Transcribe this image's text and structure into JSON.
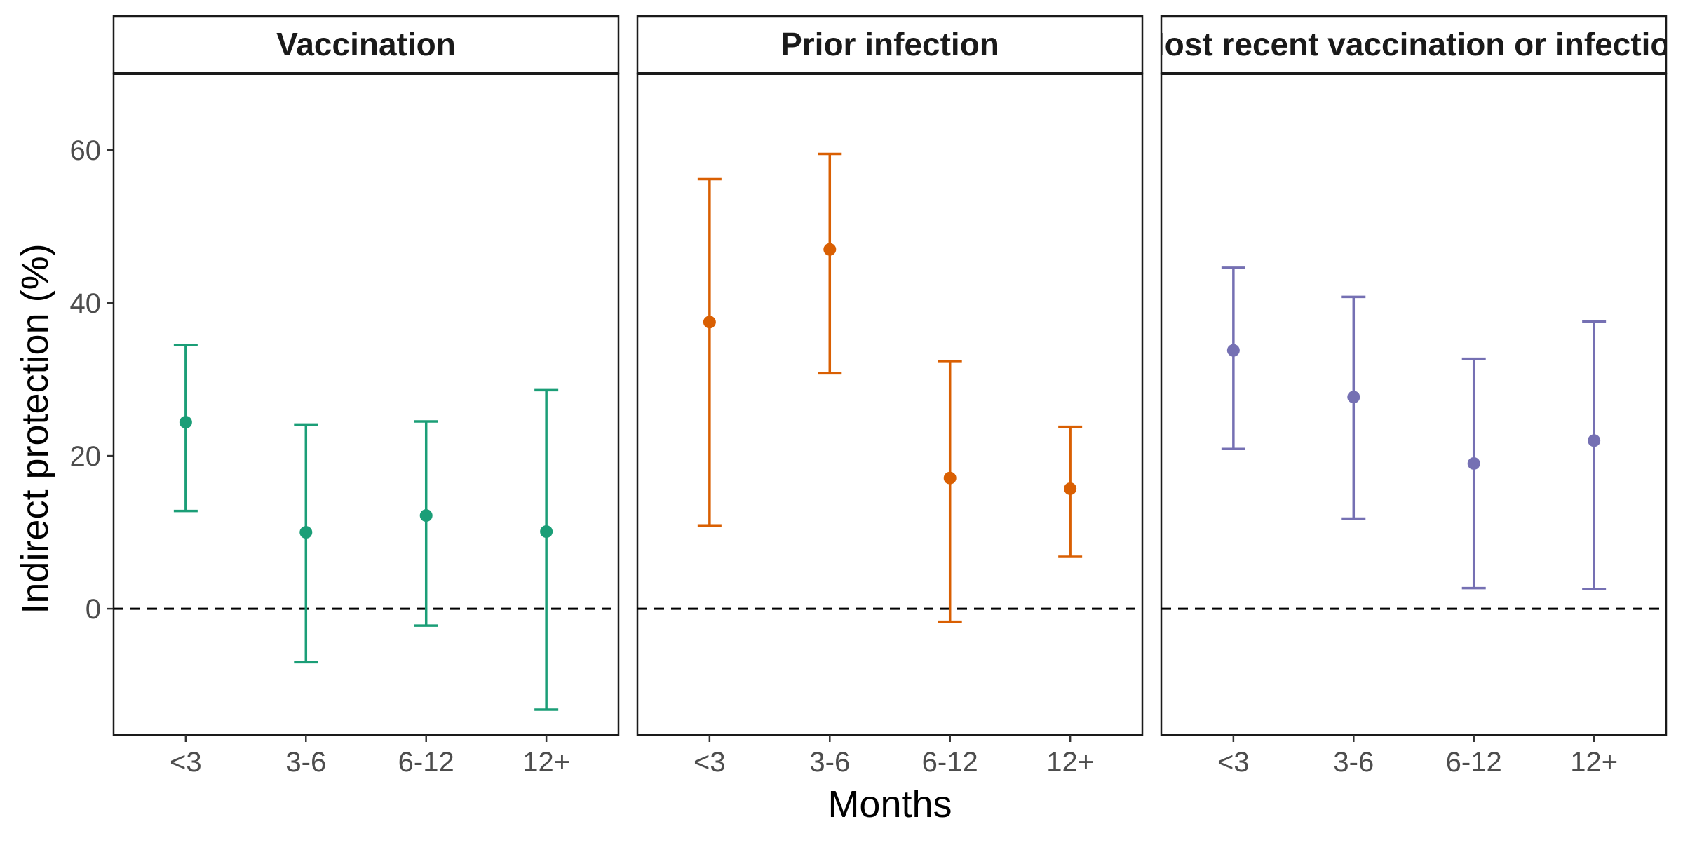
{
  "chart_data": {
    "type": "scatter",
    "subtype": "point-errorbar-faceted",
    "xlabel": "Months",
    "ylabel": "Indirect protection (%)",
    "categories": [
      "<3",
      "3-6",
      "6-12",
      "12+"
    ],
    "y_ticks": [
      0,
      20,
      40,
      60
    ],
    "ylim": [
      -16.5,
      70
    ],
    "reference_line": {
      "y": 0,
      "style": "dashed"
    },
    "grid": false,
    "legend": "none",
    "panels": [
      {
        "title": "Vaccination",
        "color": "#1b9e77",
        "estimate": [
          24.4,
          10.0,
          12.2,
          10.1
        ],
        "lower": [
          12.8,
          -7.0,
          -2.2,
          -13.2
        ],
        "upper": [
          34.5,
          24.1,
          24.5,
          28.6
        ]
      },
      {
        "title": "Prior infection",
        "color": "#d95f02",
        "estimate": [
          37.5,
          47.0,
          17.1,
          15.7
        ],
        "lower": [
          10.9,
          30.8,
          -1.7,
          6.8
        ],
        "upper": [
          56.2,
          59.5,
          32.4,
          23.8
        ]
      },
      {
        "title": "Most recent vaccination or infection",
        "color": "#7570b3",
        "estimate": [
          33.8,
          27.7,
          19.0,
          22.0
        ],
        "lower": [
          20.9,
          11.8,
          2.7,
          2.6
        ],
        "upper": [
          44.6,
          40.8,
          32.7,
          37.6
        ]
      }
    ]
  }
}
